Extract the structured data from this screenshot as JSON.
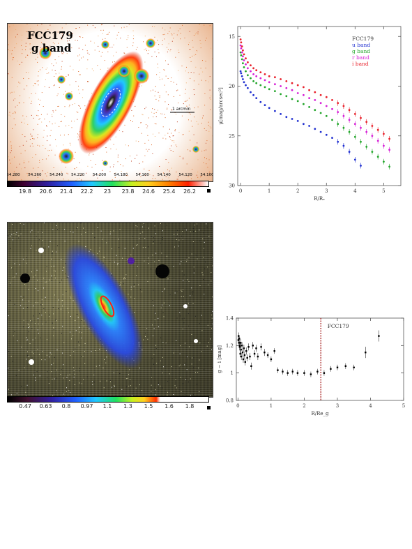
{
  "top_image": {
    "title_line1": "FCC179",
    "title_line2": "g band",
    "scale_label": "1 arcmin",
    "ra_ticks": [
      "54.280",
      "54.260",
      "54.240",
      "54.220",
      "54.200",
      "54.180",
      "54.160",
      "54.140",
      "54.120",
      "54.100"
    ],
    "colorbar_ticks": [
      "19.8",
      "20.6",
      "21.4",
      "22.2",
      "23",
      "23.8",
      "24.6",
      "25.4",
      "26.2"
    ]
  },
  "bottom_image": {
    "colorbar_ticks": [
      "0.47",
      "0.63",
      "0.8",
      "0.97",
      "1.1",
      "1.3",
      "1.5",
      "1.6",
      "1.8"
    ]
  },
  "chart_data": [
    {
      "type": "scatter",
      "title": "",
      "xlabel": "R/Rₑ",
      "ylabel": "μ[mag/arcsec²]",
      "xlim": [
        -0.1,
        5.6
      ],
      "ylim": [
        30,
        14
      ],
      "y_inverted": true,
      "xticks": [
        "0",
        "1",
        "2",
        "3",
        "4",
        "5"
      ],
      "yticks": [
        "15",
        "20",
        "25",
        "30"
      ],
      "legend_title": "FCC179",
      "legend_position": "top-right",
      "series": [
        {
          "name": "u band",
          "color": "#1f2fd0",
          "x": [
            0.0,
            0.02,
            0.05,
            0.08,
            0.12,
            0.18,
            0.25,
            0.35,
            0.45,
            0.55,
            0.7,
            0.85,
            1.0,
            1.2,
            1.4,
            1.6,
            1.8,
            2.0,
            2.2,
            2.4,
            2.6,
            2.8,
            3.0,
            3.2,
            3.4,
            3.6,
            3.8,
            4.0,
            4.2
          ],
          "y": [
            18.5,
            18.7,
            19.0,
            19.3,
            19.6,
            19.9,
            20.2,
            20.6,
            20.9,
            21.2,
            21.6,
            21.9,
            22.2,
            22.5,
            22.8,
            23.1,
            23.3,
            23.5,
            23.8,
            24.0,
            24.3,
            24.6,
            24.9,
            25.2,
            25.6,
            26.0,
            26.6,
            27.4,
            28.0
          ]
        },
        {
          "name": "g band",
          "color": "#22a52a",
          "x": [
            0.0,
            0.02,
            0.05,
            0.08,
            0.12,
            0.18,
            0.25,
            0.35,
            0.45,
            0.55,
            0.7,
            0.85,
            1.0,
            1.2,
            1.4,
            1.6,
            1.8,
            2.0,
            2.2,
            2.4,
            2.6,
            2.8,
            3.0,
            3.2,
            3.4,
            3.6,
            3.8,
            4.0,
            4.2,
            4.4,
            4.6,
            4.8,
            5.0,
            5.2
          ],
          "y": [
            16.6,
            16.9,
            17.3,
            17.7,
            18.1,
            18.5,
            18.9,
            19.2,
            19.5,
            19.7,
            19.9,
            20.1,
            20.3,
            20.5,
            20.8,
            21.0,
            21.3,
            21.5,
            21.8,
            22.1,
            22.4,
            22.7,
            23.0,
            23.4,
            23.8,
            24.2,
            24.6,
            25.1,
            25.6,
            26.1,
            26.6,
            27.1,
            27.6,
            28.1
          ]
        },
        {
          "name": "r band",
          "color": "#d61fd6",
          "x": [
            0.0,
            0.02,
            0.05,
            0.08,
            0.12,
            0.18,
            0.25,
            0.35,
            0.45,
            0.55,
            0.7,
            0.85,
            1.0,
            1.2,
            1.4,
            1.6,
            1.8,
            2.0,
            2.2,
            2.4,
            2.6,
            2.8,
            3.0,
            3.2,
            3.4,
            3.6,
            3.8,
            4.0,
            4.2,
            4.4,
            4.6,
            4.8,
            5.0,
            5.2
          ],
          "y": [
            15.9,
            16.2,
            16.6,
            17.0,
            17.4,
            17.8,
            18.2,
            18.5,
            18.8,
            19.0,
            19.2,
            19.4,
            19.6,
            19.8,
            20.0,
            20.2,
            20.4,
            20.7,
            20.9,
            21.2,
            21.4,
            21.7,
            22.0,
            22.3,
            22.6,
            23.0,
            23.4,
            23.8,
            24.2,
            24.6,
            25.0,
            25.5,
            26.0,
            26.4
          ]
        },
        {
          "name": "i band",
          "color": "#e8202a",
          "x": [
            0.0,
            0.02,
            0.05,
            0.08,
            0.12,
            0.18,
            0.25,
            0.35,
            0.45,
            0.55,
            0.7,
            0.85,
            1.0,
            1.2,
            1.4,
            1.6,
            1.8,
            2.0,
            2.2,
            2.4,
            2.6,
            2.8,
            3.0,
            3.2,
            3.4,
            3.6,
            3.8,
            4.0,
            4.2,
            4.4,
            4.6,
            4.8,
            5.0,
            5.2
          ],
          "y": [
            15.3,
            15.6,
            16.0,
            16.4,
            16.8,
            17.2,
            17.6,
            17.9,
            18.2,
            18.4,
            18.6,
            18.8,
            19.0,
            19.1,
            19.3,
            19.5,
            19.7,
            19.9,
            20.1,
            20.4,
            20.6,
            20.9,
            21.1,
            21.4,
            21.7,
            22.0,
            22.4,
            22.8,
            23.2,
            23.6,
            24.0,
            24.4,
            24.8,
            25.3
          ]
        }
      ]
    },
    {
      "type": "scatter",
      "title": "",
      "xlabel": "R/Re_g",
      "ylabel": "g − i [mag]",
      "xlim": [
        -0.05,
        5
      ],
      "ylim": [
        0.8,
        1.4
      ],
      "xticks": [
        "0",
        "1",
        "2",
        "3",
        "4",
        "5"
      ],
      "yticks": [
        "0.8",
        "1",
        "1.2",
        "1.4"
      ],
      "annotation": "FCC179",
      "vline_x": 2.5,
      "series": [
        {
          "name": "",
          "color": "#000000",
          "x": [
            0.01,
            0.02,
            0.03,
            0.04,
            0.05,
            0.06,
            0.07,
            0.08,
            0.09,
            0.1,
            0.12,
            0.14,
            0.16,
            0.18,
            0.2,
            0.22,
            0.25,
            0.28,
            0.32,
            0.36,
            0.4,
            0.45,
            0.5,
            0.55,
            0.6,
            0.7,
            0.8,
            0.9,
            1.0,
            1.1,
            1.2,
            1.35,
            1.5,
            1.65,
            1.8,
            2.0,
            2.2,
            2.4,
            2.6,
            2.8,
            3.0,
            3.25,
            3.5,
            3.85,
            4.25
          ],
          "y": [
            1.24,
            1.27,
            1.22,
            1.25,
            1.19,
            1.2,
            1.14,
            1.22,
            1.17,
            1.12,
            1.2,
            1.15,
            1.1,
            1.18,
            1.13,
            1.08,
            1.16,
            1.11,
            1.19,
            1.12,
            1.05,
            1.2,
            1.14,
            1.18,
            1.12,
            1.19,
            1.15,
            1.13,
            1.1,
            1.16,
            1.02,
            1.01,
            1.0,
            1.01,
            1.0,
            1.0,
            0.99,
            1.01,
            1.0,
            1.03,
            1.04,
            1.05,
            1.04,
            1.15,
            1.27
          ]
        }
      ]
    }
  ]
}
